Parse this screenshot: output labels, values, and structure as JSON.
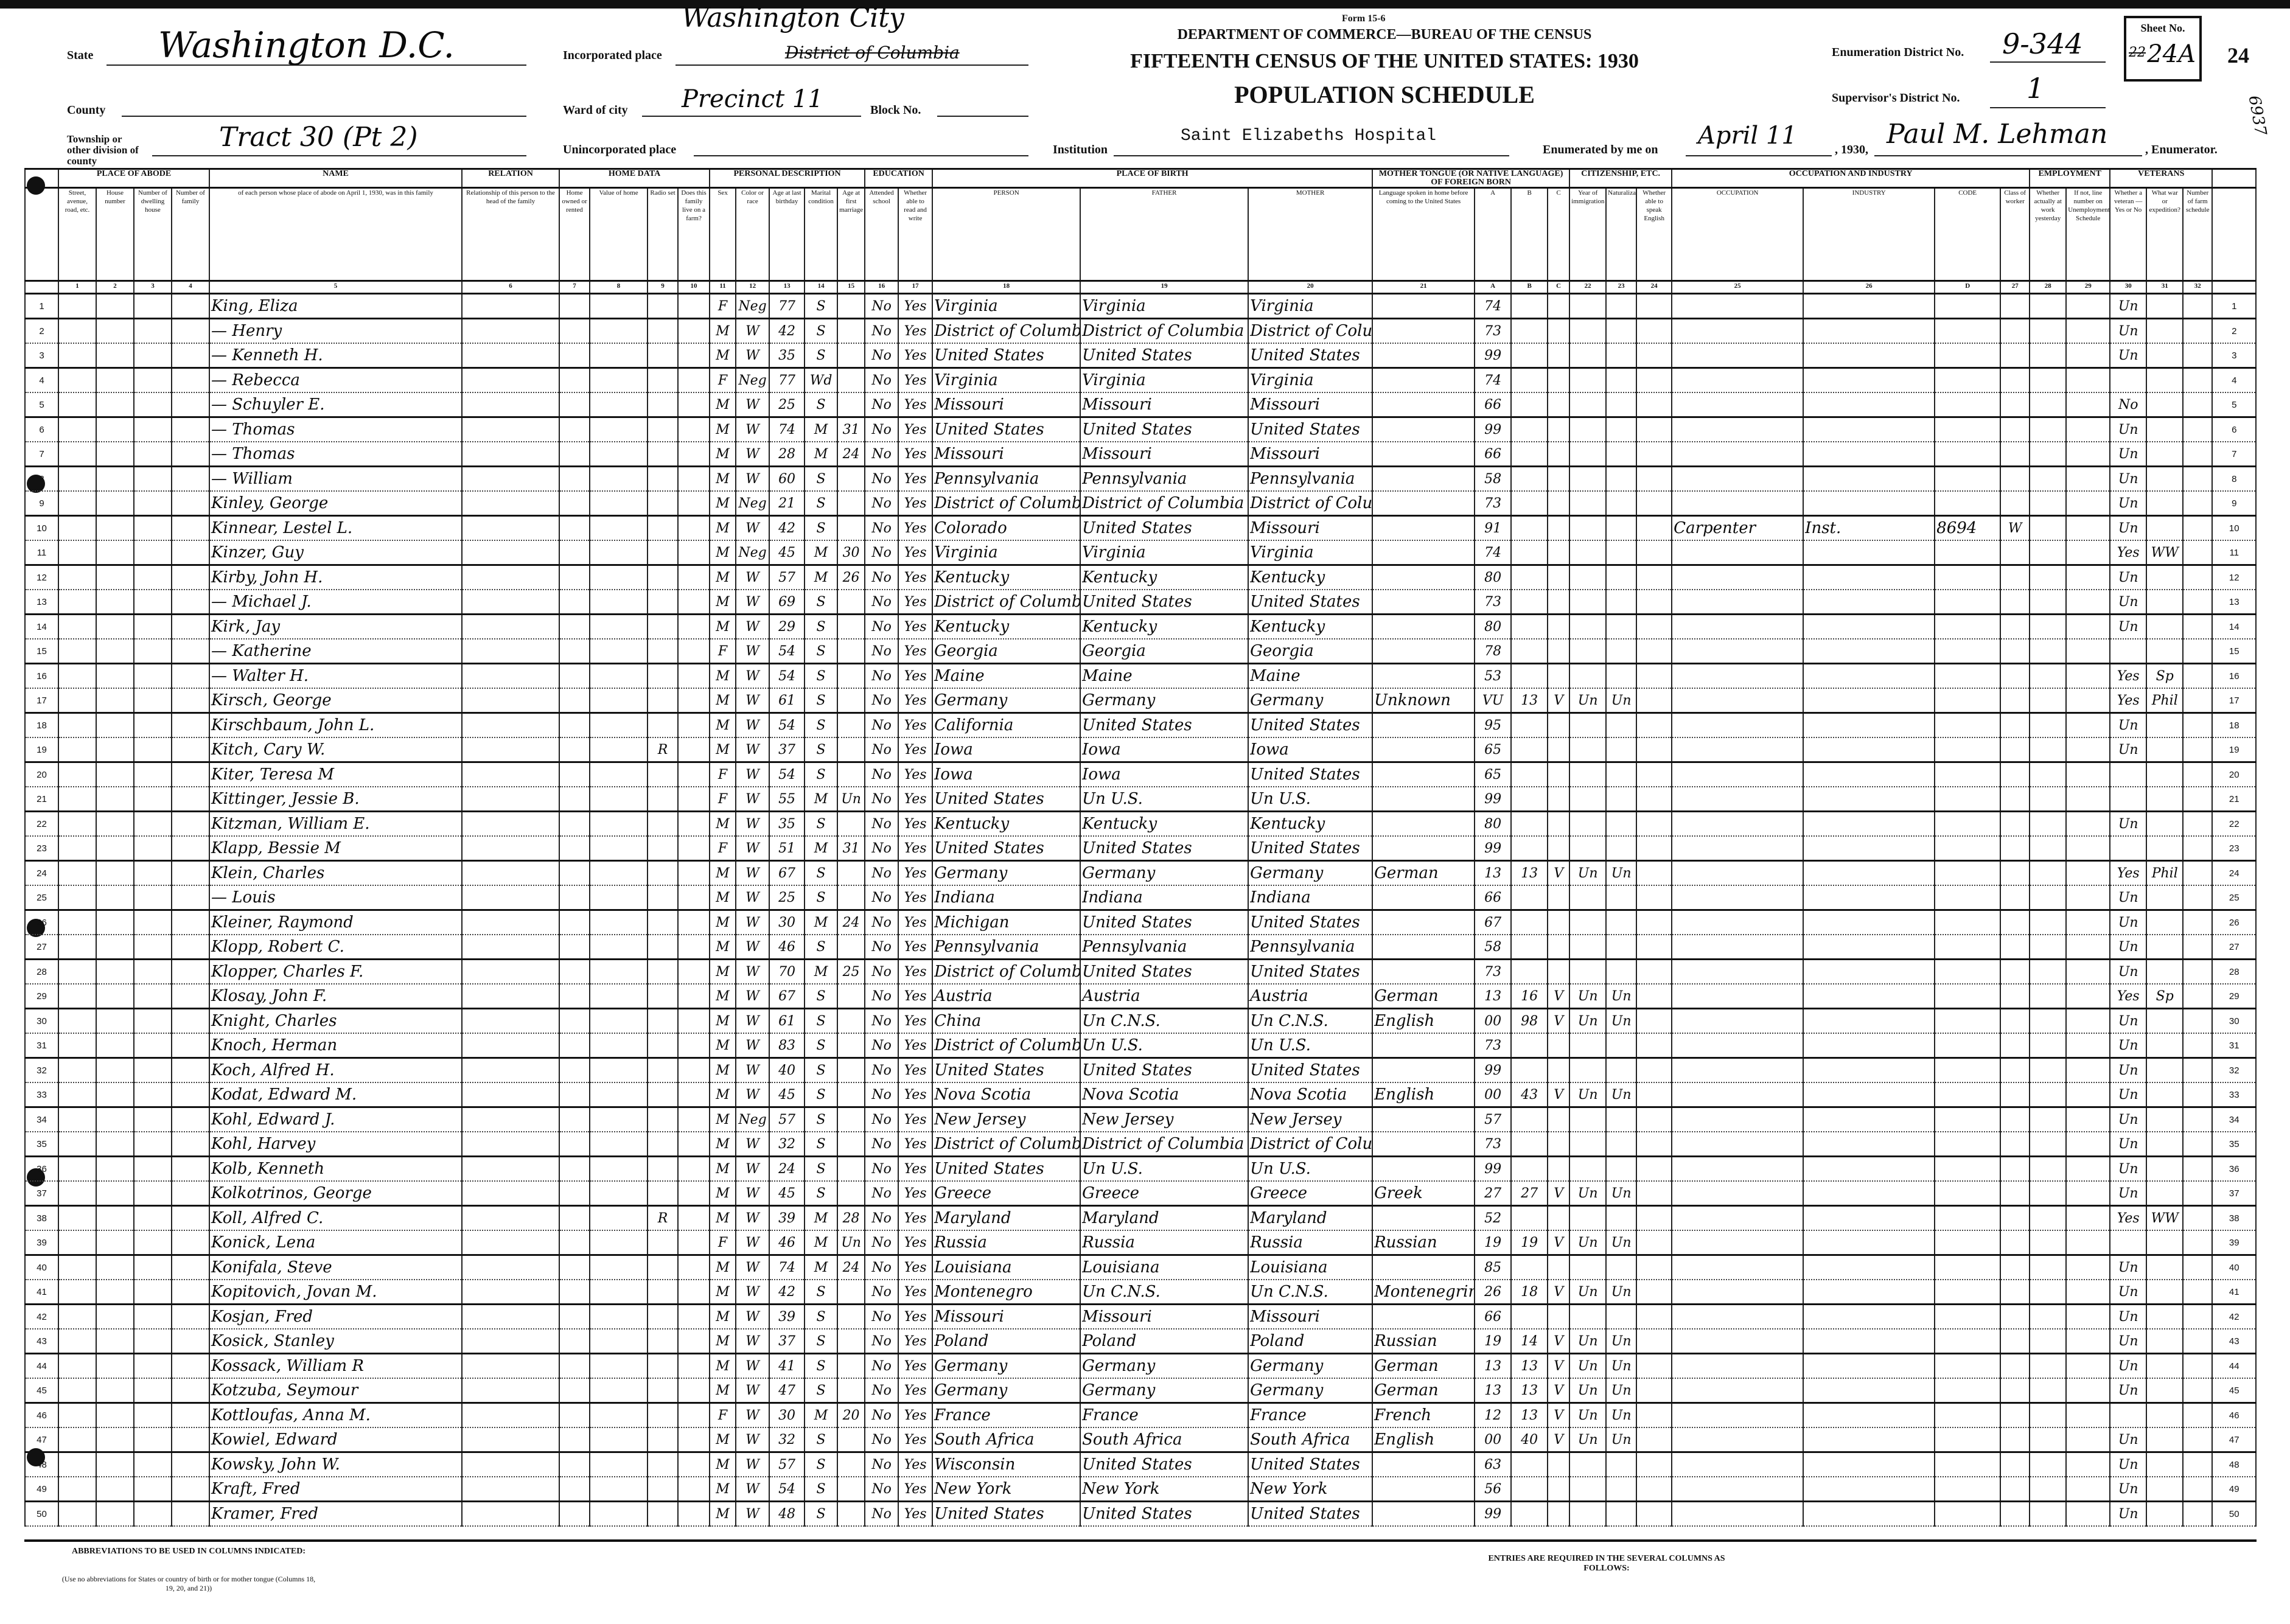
{
  "form": {
    "form_no": "Form 15-6",
    "department": "DEPARTMENT OF COMMERCE—BUREAU OF THE CENSUS",
    "title": "FIFTEENTH CENSUS OF THE UNITED STATES: 1930",
    "subtitle": "POPULATION SCHEDULE"
  },
  "fields": {
    "state_label": "State",
    "state": "Washington D.C.",
    "county_label": "County",
    "county": "",
    "township_label": "Township or other division of county",
    "township": "Tract 30 (Pt 2)",
    "incorporated_label": "Incorporated place",
    "incorporated": "Washington City",
    "incorporated_struck": "District of Columbia",
    "ward_label": "Ward of city",
    "ward": "Precinct 11",
    "block_label": "Block No.",
    "block": "",
    "unincorporated_label": "Unincorporated place",
    "unincorporated": "",
    "institution_label": "Institution",
    "institution": "Saint Elizabeths Hospital",
    "enumerated_label": "Enumerated by me on",
    "enumerated_date": "April 11",
    "year": ", 1930,",
    "enumerator": "Paul M. Lehman",
    "enumerator_label": ", Enumerator.",
    "ed_label": "Enumeration District No.",
    "ed": "9-344",
    "sd_label": "Supervisor's District No.",
    "sd": "1",
    "sheet_label": "Sheet No.",
    "sheet": "24A",
    "sheet_struck": "22",
    "stamp_number": "24",
    "margin_number": "6937"
  },
  "columns": {
    "groups": [
      "PLACE OF ABODE",
      "NAME",
      "RELATION",
      "HOME DATA",
      "PERSONAL DESCRIPTION",
      "EDUCATION",
      "PLACE OF BIRTH",
      "MOTHER TONGUE (OR NATIVE LANGUAGE) OF FOREIGN BORN",
      "CITIZENSHIP, ETC.",
      "OCCUPATION AND INDUSTRY",
      "EMPLOYMENT",
      "VETERANS"
    ],
    "sub": [
      "",
      "Street, avenue, road, etc.",
      "House number",
      "Number of dwelling house",
      "Number of family",
      "of each person whose place of abode on April 1, 1930, was in this family",
      "Relationship of this person to the head of the family",
      "Home owned or rented",
      "Value of home",
      "Radio set",
      "Does this family live on a farm?",
      "Sex",
      "Color or race",
      "Age at last birthday",
      "Marital condition",
      "Age at first marriage",
      "Attended school",
      "Whether able to read and write",
      "PERSON",
      "FATHER",
      "MOTHER",
      "Language spoken in home before coming to the United States",
      "A",
      "B",
      "C",
      "Year of immigration",
      "Naturalization",
      "Whether able to speak English",
      "OCCUPATION",
      "INDUSTRY",
      "CODE",
      "Class of worker",
      "Whether actually at work yesterday",
      "If not, line number on Unemployment Schedule",
      "Whether a veteran — Yes or No",
      "What war or expedition?",
      "Number of farm schedule",
      ""
    ],
    "numbers": [
      "",
      "1",
      "2",
      "3",
      "4",
      "5",
      "6",
      "7",
      "8",
      "9",
      "10",
      "11",
      "12",
      "13",
      "14",
      "15",
      "16",
      "17",
      "18",
      "19",
      "20",
      "21",
      "A",
      "B",
      "C",
      "22",
      "23",
      "24",
      "25",
      "26",
      "D",
      "27",
      "28",
      "29",
      "30",
      "31",
      "32",
      ""
    ]
  },
  "rows": [
    {
      "n": "1",
      "name": "King, Eliza",
      "sex": "F",
      "race": "Neg",
      "age": "77",
      "mar": "S",
      "sch": "No",
      "read": "Yes",
      "bp": "Virginia",
      "fbp": "Virginia",
      "mbp": "Virginia",
      "a": "74",
      "vet": "Un"
    },
    {
      "n": "2",
      "name": "— Henry",
      "sex": "M",
      "race": "W",
      "age": "42",
      "mar": "S",
      "sch": "No",
      "read": "Yes",
      "bp": "District of Columbia",
      "fbp": "District of Columbia",
      "mbp": "District of Columbia",
      "a": "73",
      "vet": "Un"
    },
    {
      "n": "3",
      "name": "— Kenneth H.",
      "sex": "M",
      "race": "W",
      "age": "35",
      "mar": "S",
      "sch": "No",
      "read": "Yes",
      "bp": "United States",
      "fbp": "United States",
      "mbp": "United States",
      "a": "99",
      "vet": "Un"
    },
    {
      "n": "4",
      "name": "— Rebecca",
      "sex": "F",
      "race": "Neg",
      "age": "77",
      "mar": "Wd",
      "sch": "No",
      "read": "Yes",
      "bp": "Virginia",
      "fbp": "Virginia",
      "mbp": "Virginia",
      "a": "74"
    },
    {
      "n": "5",
      "name": "— Schuyler E.",
      "sex": "M",
      "race": "W",
      "age": "25",
      "mar": "S",
      "sch": "No",
      "read": "Yes",
      "bp": "Missouri",
      "fbp": "Missouri",
      "mbp": "Missouri",
      "a": "66",
      "vet": "No"
    },
    {
      "n": "6",
      "name": "— Thomas",
      "sex": "M",
      "race": "W",
      "age": "74",
      "mar": "M",
      "agem": "31",
      "sch": "No",
      "read": "Yes",
      "bp": "United States",
      "fbp": "United States",
      "mbp": "United States",
      "a": "99",
      "vet": "Un"
    },
    {
      "n": "7",
      "name": "— Thomas",
      "sex": "M",
      "race": "W",
      "age": "28",
      "mar": "M",
      "agem": "24",
      "sch": "No",
      "read": "Yes",
      "bp": "Missouri",
      "fbp": "Missouri",
      "mbp": "Missouri",
      "a": "66",
      "vet": "Un"
    },
    {
      "n": "8",
      "name": "— William",
      "sex": "M",
      "race": "W",
      "age": "60",
      "mar": "S",
      "sch": "No",
      "read": "Yes",
      "bp": "Pennsylvania",
      "fbp": "Pennsylvania",
      "mbp": "Pennsylvania",
      "a": "58",
      "vet": "Un"
    },
    {
      "n": "9",
      "name": "Kinley, George",
      "sex": "M",
      "race": "Neg",
      "age": "21",
      "mar": "S",
      "sch": "No",
      "read": "Yes",
      "bp": "District of Columbia",
      "fbp": "District of Columbia",
      "mbp": "District of Columbia",
      "a": "73",
      "vet": "Un"
    },
    {
      "n": "10",
      "name": "Kinnear, Lestel L.",
      "sex": "M",
      "race": "W",
      "age": "42",
      "mar": "S",
      "sch": "No",
      "read": "Yes",
      "bp": "Colorado",
      "fbp": "United States",
      "mbp": "Missouri",
      "a": "91",
      "occ": "Carpenter",
      "ind": "Inst.",
      "cd": "8694",
      "cls": "W",
      "vet": "Un"
    },
    {
      "n": "11",
      "name": "Kinzer, Guy",
      "sex": "M",
      "race": "Neg",
      "age": "45",
      "mar": "M",
      "agem": "30",
      "sch": "No",
      "read": "Yes",
      "bp": "Virginia",
      "fbp": "Virginia",
      "mbp": "Virginia",
      "a": "74",
      "vet": "Yes",
      "war": "WW"
    },
    {
      "n": "12",
      "name": "Kirby, John H.",
      "sex": "M",
      "race": "W",
      "age": "57",
      "mar": "M",
      "agem": "26",
      "sch": "No",
      "read": "Yes",
      "bp": "Kentucky",
      "fbp": "Kentucky",
      "mbp": "Kentucky",
      "a": "80",
      "vet": "Un"
    },
    {
      "n": "13",
      "name": "— Michael J.",
      "sex": "M",
      "race": "W",
      "age": "69",
      "mar": "S",
      "sch": "No",
      "read": "Yes",
      "bp": "District of Columbia",
      "fbp": "United States",
      "mbp": "United States",
      "a": "73",
      "vet": "Un"
    },
    {
      "n": "14",
      "name": "Kirk, Jay",
      "sex": "M",
      "race": "W",
      "age": "29",
      "mar": "S",
      "sch": "No",
      "read": "Yes",
      "bp": "Kentucky",
      "fbp": "Kentucky",
      "mbp": "Kentucky",
      "a": "80",
      "vet": "Un"
    },
    {
      "n": "15",
      "name": "— Katherine",
      "sex": "F",
      "race": "W",
      "age": "54",
      "mar": "S",
      "sch": "No",
      "read": "Yes",
      "bp": "Georgia",
      "fbp": "Georgia",
      "mbp": "Georgia",
      "a": "78"
    },
    {
      "n": "16",
      "name": "— Walter H.",
      "sex": "M",
      "race": "W",
      "age": "54",
      "mar": "S",
      "sch": "No",
      "read": "Yes",
      "bp": "Maine",
      "fbp": "Maine",
      "mbp": "Maine",
      "a": "53",
      "vet": "Yes",
      "war": "Sp"
    },
    {
      "n": "17",
      "name": "Kirsch, George",
      "sex": "M",
      "race": "W",
      "age": "61",
      "mar": "S",
      "sch": "No",
      "read": "Yes",
      "bp": "Germany",
      "fbp": "Germany",
      "mbp": "Germany",
      "tongue": "Unknown",
      "a": "VU",
      "b": "13",
      "c": "V",
      "imm": "Un",
      "nat": "Un",
      "vet": "Yes",
      "war": "Phil"
    },
    {
      "n": "18",
      "name": "Kirschbaum, John L.",
      "sex": "M",
      "race": "W",
      "age": "54",
      "mar": "S",
      "sch": "No",
      "read": "Yes",
      "bp": "California",
      "fbp": "United States",
      "mbp": "United States",
      "a": "95",
      "vet": "Un"
    },
    {
      "n": "19",
      "name": "Kitch, Cary W.",
      "radio": "R",
      "sex": "M",
      "race": "W",
      "age": "37",
      "mar": "S",
      "sch": "No",
      "read": "Yes",
      "bp": "Iowa",
      "fbp": "Iowa",
      "mbp": "Iowa",
      "a": "65",
      "vet": "Un"
    },
    {
      "n": "20",
      "name": "Kiter, Teresa M",
      "sex": "F",
      "race": "W",
      "age": "54",
      "mar": "S",
      "sch": "No",
      "read": "Yes",
      "bp": "Iowa",
      "fbp": "Iowa",
      "mbp": "United States",
      "a": "65"
    },
    {
      "n": "21",
      "name": "Kittinger, Jessie B.",
      "sex": "F",
      "race": "W",
      "age": "55",
      "mar": "M",
      "agem": "Un",
      "sch": "No",
      "read": "Yes",
      "bp": "United States",
      "fbp": "Un U.S.",
      "mbp": "Un U.S.",
      "a": "99"
    },
    {
      "n": "22",
      "name": "Kitzman, William E.",
      "sex": "M",
      "race": "W",
      "age": "35",
      "mar": "S",
      "sch": "No",
      "read": "Yes",
      "bp": "Kentucky",
      "fbp": "Kentucky",
      "mbp": "Kentucky",
      "a": "80",
      "vet": "Un"
    },
    {
      "n": "23",
      "name": "Klapp, Bessie M",
      "sex": "F",
      "race": "W",
      "age": "51",
      "mar": "M",
      "agem": "31",
      "sch": "No",
      "read": "Yes",
      "bp": "United States",
      "fbp": "United States",
      "mbp": "United States",
      "a": "99"
    },
    {
      "n": "24",
      "name": "Klein, Charles",
      "sex": "M",
      "race": "W",
      "age": "67",
      "mar": "S",
      "sch": "No",
      "read": "Yes",
      "bp": "Germany",
      "fbp": "Germany",
      "mbp": "Germany",
      "tongue": "German",
      "a": "13",
      "b": "13",
      "c": "V",
      "imm": "Un",
      "nat": "Un",
      "vet": "Yes",
      "war": "Phil"
    },
    {
      "n": "25",
      "name": "— Louis",
      "sex": "M",
      "race": "W",
      "age": "25",
      "mar": "S",
      "sch": "No",
      "read": "Yes",
      "bp": "Indiana",
      "fbp": "Indiana",
      "mbp": "Indiana",
      "a": "66",
      "vet": "Un"
    },
    {
      "n": "26",
      "name": "Kleiner, Raymond",
      "sex": "M",
      "race": "W",
      "age": "30",
      "mar": "M",
      "agem": "24",
      "sch": "No",
      "read": "Yes",
      "bp": "Michigan",
      "fbp": "United States",
      "mbp": "United States",
      "a": "67",
      "vet": "Un"
    },
    {
      "n": "27",
      "name": "Klopp, Robert C.",
      "sex": "M",
      "race": "W",
      "age": "46",
      "mar": "S",
      "sch": "No",
      "read": "Yes",
      "bp": "Pennsylvania",
      "fbp": "Pennsylvania",
      "mbp": "Pennsylvania",
      "a": "58",
      "vet": "Un"
    },
    {
      "n": "28",
      "name": "Klopper, Charles F.",
      "sex": "M",
      "race": "W",
      "age": "70",
      "mar": "M",
      "agem": "25",
      "sch": "No",
      "read": "Yes",
      "bp": "District of Columbia",
      "fbp": "United States",
      "mbp": "United States",
      "a": "73",
      "vet": "Un"
    },
    {
      "n": "29",
      "name": "Klosay, John F.",
      "sex": "M",
      "race": "W",
      "age": "67",
      "mar": "S",
      "sch": "No",
      "read": "Yes",
      "bp": "Austria",
      "fbp": "Austria",
      "mbp": "Austria",
      "tongue": "German",
      "a": "13",
      "b": "16",
      "c": "V",
      "imm": "Un",
      "nat": "Un",
      "vet": "Yes",
      "war": "Sp"
    },
    {
      "n": "30",
      "name": "Knight, Charles",
      "sex": "M",
      "race": "W",
      "age": "61",
      "mar": "S",
      "sch": "No",
      "read": "Yes",
      "bp": "China",
      "fbp": "Un C.N.S.",
      "mbp": "Un C.N.S.",
      "tongue": "English",
      "a": "00",
      "b": "98",
      "c": "V",
      "imm": "Un",
      "nat": "Un",
      "vet": "Un"
    },
    {
      "n": "31",
      "name": "Knoch, Herman",
      "sex": "M",
      "race": "W",
      "age": "83",
      "mar": "S",
      "sch": "No",
      "read": "Yes",
      "bp": "District of Columbia",
      "fbp": "Un U.S.",
      "mbp": "Un U.S.",
      "a": "73",
      "vet": "Un"
    },
    {
      "n": "32",
      "name": "Koch, Alfred H.",
      "sex": "M",
      "race": "W",
      "age": "40",
      "mar": "S",
      "sch": "No",
      "read": "Yes",
      "bp": "United States",
      "fbp": "United States",
      "mbp": "United States",
      "a": "99",
      "vet": "Un"
    },
    {
      "n": "33",
      "name": "Kodat, Edward M.",
      "sex": "M",
      "race": "W",
      "age": "45",
      "mar": "S",
      "sch": "No",
      "read": "Yes",
      "bp": "Nova Scotia",
      "fbp": "Nova Scotia",
      "mbp": "Nova Scotia",
      "tongue": "English",
      "a": "00",
      "b": "43",
      "c": "V",
      "imm": "Un",
      "nat": "Un",
      "vet": "Un"
    },
    {
      "n": "34",
      "name": "Kohl, Edward J.",
      "sex": "M",
      "race": "Neg",
      "age": "57",
      "mar": "S",
      "sch": "No",
      "read": "Yes",
      "bp": "New Jersey",
      "fbp": "New Jersey",
      "mbp": "New Jersey",
      "a": "57",
      "vet": "Un"
    },
    {
      "n": "35",
      "name": "Kohl, Harvey",
      "sex": "M",
      "race": "W",
      "age": "32",
      "mar": "S",
      "sch": "No",
      "read": "Yes",
      "bp": "District of Columbia",
      "fbp": "District of Columbia",
      "mbp": "District of Columbia",
      "a": "73",
      "vet": "Un"
    },
    {
      "n": "36",
      "name": "Kolb, Kenneth",
      "sex": "M",
      "race": "W",
      "age": "24",
      "mar": "S",
      "sch": "No",
      "read": "Yes",
      "bp": "United States",
      "fbp": "Un U.S.",
      "mbp": "Un U.S.",
      "a": "99",
      "vet": "Un"
    },
    {
      "n": "37",
      "name": "Kolkotrinos, George",
      "sex": "M",
      "race": "W",
      "age": "45",
      "mar": "S",
      "sch": "No",
      "read": "Yes",
      "bp": "Greece",
      "fbp": "Greece",
      "mbp": "Greece",
      "tongue": "Greek",
      "a": "27",
      "b": "27",
      "c": "V",
      "imm": "Un",
      "nat": "Un",
      "vet": "Un"
    },
    {
      "n": "38",
      "name": "Koll, Alfred C.",
      "radio": "R",
      "sex": "M",
      "race": "W",
      "age": "39",
      "mar": "M",
      "agem": "28",
      "sch": "No",
      "read": "Yes",
      "bp": "Maryland",
      "fbp": "Maryland",
      "mbp": "Maryland",
      "a": "52",
      "vet": "Yes",
      "war": "WW"
    },
    {
      "n": "39",
      "name": "Konick, Lena",
      "sex": "F",
      "race": "W",
      "age": "46",
      "mar": "M",
      "agem": "Un",
      "sch": "No",
      "read": "Yes",
      "bp": "Russia",
      "fbp": "Russia",
      "mbp": "Russia",
      "tongue": "Russian",
      "a": "19",
      "b": "19",
      "c": "V",
      "imm": "Un",
      "nat": "Un"
    },
    {
      "n": "40",
      "name": "Konifala, Steve",
      "sex": "M",
      "race": "W",
      "age": "74",
      "mar": "M",
      "agem": "24",
      "sch": "No",
      "read": "Yes",
      "bp": "Louisiana",
      "fbp": "Louisiana",
      "mbp": "Louisiana",
      "a": "85",
      "vet": "Un"
    },
    {
      "n": "41",
      "name": "Kopitovich, Jovan M.",
      "sex": "M",
      "race": "W",
      "age": "42",
      "mar": "S",
      "sch": "No",
      "read": "Yes",
      "bp": "Montenegro",
      "fbp": "Un C.N.S.",
      "mbp": "Un C.N.S.",
      "tongue": "Montenegrin",
      "a": "26",
      "b": "18",
      "c": "V",
      "imm": "Un",
      "nat": "Un",
      "vet": "Un"
    },
    {
      "n": "42",
      "name": "Kosjan, Fred",
      "sex": "M",
      "race": "W",
      "age": "39",
      "mar": "S",
      "sch": "No",
      "read": "Yes",
      "bp": "Missouri",
      "fbp": "Missouri",
      "mbp": "Missouri",
      "a": "66",
      "vet": "Un"
    },
    {
      "n": "43",
      "name": "Kosick, Stanley",
      "sex": "M",
      "race": "W",
      "age": "37",
      "mar": "S",
      "sch": "No",
      "read": "Yes",
      "bp": "Poland",
      "fbp": "Poland",
      "mbp": "Poland",
      "tongue": "Russian",
      "a": "19",
      "b": "14",
      "c": "V",
      "imm": "Un",
      "nat": "Un",
      "vet": "Un"
    },
    {
      "n": "44",
      "name": "Kossack, William R",
      "sex": "M",
      "race": "W",
      "age": "41",
      "mar": "S",
      "sch": "No",
      "read": "Yes",
      "bp": "Germany",
      "fbp": "Germany",
      "mbp": "Germany",
      "tongue": "German",
      "a": "13",
      "b": "13",
      "c": "V",
      "imm": "Un",
      "nat": "Un",
      "vet": "Un"
    },
    {
      "n": "45",
      "name": "Kotzuba, Seymour",
      "sex": "M",
      "race": "W",
      "age": "47",
      "mar": "S",
      "sch": "No",
      "read": "Yes",
      "bp": "Germany",
      "fbp": "Germany",
      "mbp": "Germany",
      "tongue": "German",
      "a": "13",
      "b": "13",
      "c": "V",
      "imm": "Un",
      "nat": "Un",
      "vet": "Un"
    },
    {
      "n": "46",
      "name": "Kottloufas, Anna M.",
      "sex": "F",
      "race": "W",
      "age": "30",
      "mar": "M",
      "agem": "20",
      "sch": "No",
      "read": "Yes",
      "bp": "France",
      "fbp": "France",
      "mbp": "France",
      "tongue": "French",
      "a": "12",
      "b": "13",
      "c": "V",
      "imm": "Un",
      "nat": "Un"
    },
    {
      "n": "47",
      "name": "Kowiel, Edward",
      "sex": "M",
      "race": "W",
      "age": "32",
      "mar": "S",
      "sch": "No",
      "read": "Yes",
      "bp": "South Africa",
      "fbp": "South Africa",
      "mbp": "South Africa",
      "tongue": "English",
      "a": "00",
      "b": "40",
      "c": "V",
      "imm": "Un",
      "nat": "Un",
      "vet": "Un"
    },
    {
      "n": "48",
      "name": "Kowsky, John W.",
      "sex": "M",
      "race": "W",
      "age": "57",
      "mar": "S",
      "sch": "No",
      "read": "Yes",
      "bp": "Wisconsin",
      "fbp": "United States",
      "mbp": "United States",
      "a": "63",
      "vet": "Un"
    },
    {
      "n": "49",
      "name": "Kraft, Fred",
      "sex": "M",
      "race": "W",
      "age": "54",
      "mar": "S",
      "sch": "No",
      "read": "Yes",
      "bp": "New York",
      "fbp": "New York",
      "mbp": "New York",
      "a": "56",
      "vet": "Un"
    },
    {
      "n": "50",
      "name": "Kramer, Fred",
      "sex": "M",
      "race": "W",
      "age": "48",
      "mar": "S",
      "sch": "No",
      "read": "Yes",
      "bp": "United States",
      "fbp": "United States",
      "mbp": "United States",
      "a": "99",
      "vet": "Un"
    }
  ],
  "footer": {
    "abbrev_title": "ABBREVIATIONS TO BE USED IN COLUMNS INDICATED:",
    "abbrev_note": "(Use no abbreviations for States or country of birth or for mother tongue (Columns 18, 19, 20, and 21))",
    "entries_title": "ENTRIES ARE REQUIRED IN THE SEVERAL COLUMNS AS FOLLOWS:"
  }
}
